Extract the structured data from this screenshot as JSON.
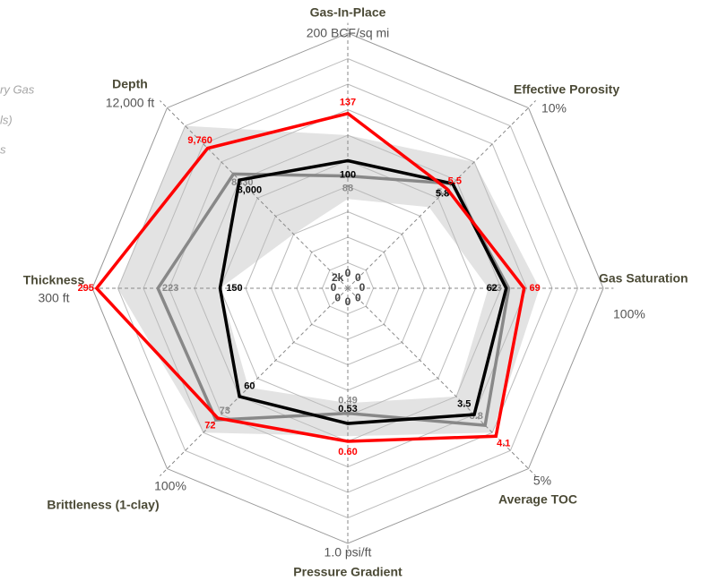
{
  "chart_data": {
    "type": "radar",
    "axes": [
      {
        "name": "Gas-In-Place",
        "min": 0,
        "min_label": "0",
        "max": 200,
        "max_label": "200 BCF/sq mi"
      },
      {
        "name": "Effective Porosity",
        "min": 0,
        "min_label": "0",
        "max": 10,
        "max_label": "10%"
      },
      {
        "name": "Gas Saturation",
        "min": 0,
        "min_label": "0",
        "max": 100,
        "max_label": "100%"
      },
      {
        "name": "Average TOC",
        "min": 0,
        "min_label": "0",
        "max": 5,
        "max_label": "5%"
      },
      {
        "name": "Pressure Gradient",
        "min": 0,
        "min_label": "0",
        "max": 1.0,
        "max_label": "1.0 psi/ft"
      },
      {
        "name": "Brittleness (1-clay)",
        "min": 0,
        "min_label": "0",
        "max": 100,
        "max_label": "100%"
      },
      {
        "name": "Thickness",
        "min": 0,
        "min_label": "0",
        "max": 300,
        "max_label": "300 ft"
      },
      {
        "name": "Depth",
        "min": 2000,
        "min_label": "2k",
        "max": 12000,
        "max_label": "12,000 ft"
      }
    ],
    "grid_rings": 10,
    "band": {
      "color": "#e3e3e3",
      "lower": [
        70,
        4.5,
        55,
        3.0,
        0.45,
        55,
        150,
        5000
      ],
      "upper": [
        120,
        7.0,
        75,
        4.0,
        0.58,
        80,
        270,
        11000
      ]
    },
    "series": [
      {
        "color": "#888888",
        "values": [
          88,
          5.8,
          63,
          3.8,
          0.49,
          73,
          223,
          8330
        ],
        "value_labels": [
          "88",
          "5.8",
          "63",
          "3.8",
          "0.49",
          "73",
          "223",
          "8330"
        ]
      },
      {
        "color": "#000000",
        "values": [
          100,
          5.8,
          62,
          3.5,
          0.53,
          60,
          150,
          8000
        ],
        "value_labels": [
          "100",
          "5.8",
          "62",
          "3.5",
          "0.53",
          "60",
          "150",
          "8,000"
        ]
      },
      {
        "color": "#ff0000",
        "values": [
          137,
          5.5,
          69,
          4.1,
          0.6,
          72,
          295,
          9760
        ],
        "value_labels": [
          "137",
          "5.5",
          "69",
          "4.1",
          "0.60",
          "72",
          "295",
          "9,760"
        ]
      }
    ],
    "legend_fragments": [
      "ry Gas",
      "ls)",
      "s"
    ]
  }
}
